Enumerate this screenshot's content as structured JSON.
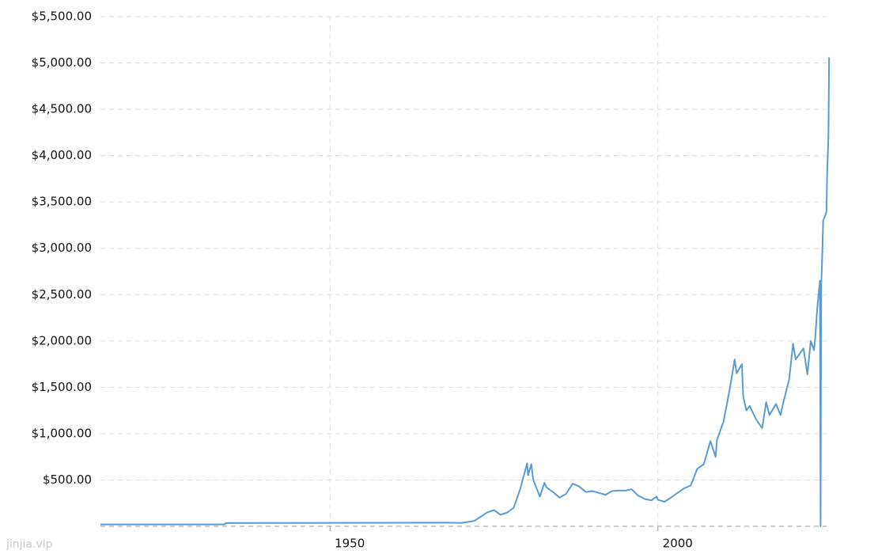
{
  "chart_data": {
    "type": "line",
    "x": [
      1915,
      1933.9,
      1934.1,
      1968,
      1970,
      1972,
      1974,
      1975,
      1976,
      1977,
      1978,
      1979,
      1980.05,
      1980.2,
      1980.7,
      1981,
      1982,
      1982.7,
      1983,
      1984,
      1985,
      1986,
      1987,
      1988,
      1989,
      1990,
      1991,
      1992,
      1993,
      1994,
      1995,
      1996,
      1997,
      1998,
      1999,
      1999.8,
      2000,
      2001,
      2002,
      2003,
      2004,
      2005,
      2006,
      2007,
      2008,
      2008.8,
      2009,
      2010,
      2011,
      2011.7,
      2012,
      2012.8,
      2013,
      2013.5,
      2014,
      2015,
      2015.9,
      2016.5,
      2017,
      2018,
      2018.7,
      2019,
      2019.7,
      2020,
      2020.6,
      2021,
      2022.2,
      2022.8,
      2023.3,
      2023.8,
      2024,
      2024.3,
      2024.7,
      2024.8,
      2024.9,
      2025.0,
      2025.2,
      2025.5,
      2025.7,
      2025.8,
      2026,
      2026.1
    ],
    "series": [
      {
        "color": "#5b9bd5",
        "values": [
          20.67,
          20.67,
          35,
          39,
          36,
          58,
          150,
          175,
          125,
          148,
          200,
          400,
          680,
          550,
          670,
          500,
          320,
          470,
          420,
          370,
          310,
          350,
          460,
          430,
          370,
          380,
          360,
          340,
          380,
          385,
          385,
          400,
          330,
          295,
          280,
          320,
          285,
          265,
          310,
          360,
          410,
          440,
          620,
          670,
          920,
          750,
          930,
          1130,
          1500,
          1800,
          1650,
          1750,
          1400,
          1250,
          1300,
          1150,
          1060,
          1340,
          1200,
          1320,
          1200,
          1300,
          1500,
          1580,
          1970,
          1800,
          1920,
          1640,
          2000,
          1900,
          2050,
          2350,
          2650,
          0,
          2600,
          2800,
          3300,
          3350,
          3400,
          3800,
          4200,
          5060
        ]
      }
    ],
    "xlim": [
      1915,
      2026.2
    ],
    "xticks": [
      1950,
      2000
    ],
    "ylim": [
      0,
      5500
    ],
    "yticks": [
      {
        "value": 500,
        "label": "$500.00"
      },
      {
        "value": 1000,
        "label": "$1,000.00"
      },
      {
        "value": 1500,
        "label": "$1,500.00"
      },
      {
        "value": 2000,
        "label": "$2,000.00"
      },
      {
        "value": 2500,
        "label": "$2,500.00"
      },
      {
        "value": 3000,
        "label": "$3,000.00"
      },
      {
        "value": 3500,
        "label": "$3,500.00"
      },
      {
        "value": 4000,
        "label": "$4,000.00"
      },
      {
        "value": 4500,
        "label": "$4,500.00"
      },
      {
        "value": 5000,
        "label": "$5,000.00"
      },
      {
        "value": 5500,
        "label": "$5,500.00"
      }
    ],
    "grid": true
  },
  "watermark": "jinjia.vip"
}
